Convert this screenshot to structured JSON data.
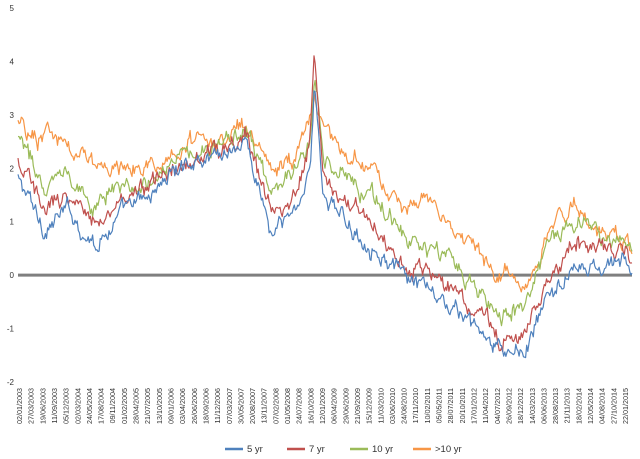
{
  "chart_data": {
    "type": "line",
    "title": "",
    "xlabel": "",
    "ylabel": "",
    "ylim": [
      -2,
      5
    ],
    "yticks": [
      -2,
      -1,
      0,
      1,
      2,
      3,
      4,
      5
    ],
    "ytick_labels": [
      "-2",
      "-1",
      "0",
      "1",
      "2",
      "3",
      "4",
      "5"
    ],
    "grid": false,
    "legend_position": "bottom",
    "zero_line_color": "#7f7f7f",
    "x_tick_labels": [
      "02/01/2003",
      "27/03/2003",
      "19/06/2003",
      "11/09/2003",
      "05/12/2003",
      "02/03/2004",
      "24/05/2004",
      "17/08/2004",
      "09/11/2004",
      "01/02/2005",
      "28/04/2005",
      "21/07/2005",
      "13/10/2005",
      "09/01/2006",
      "03/04/2006",
      "26/06/2006",
      "18/09/2006",
      "11/12/2006",
      "07/03/2007",
      "30/05/2007",
      "20/08/2007",
      "13/11/2007",
      "07/02/2008",
      "01/05/2008",
      "24/07/2008",
      "16/10/2008",
      "12/01/2009",
      "06/04/2009",
      "29/06/2009",
      "21/09/2009",
      "15/12/2009",
      "11/03/2010",
      "03/06/2010",
      "24/08/2010",
      "17/11/2010",
      "10/02/2011",
      "05/05/2011",
      "28/07/2011",
      "20/10/2011",
      "17/01/2012",
      "11/04/2012",
      "04/07/2012",
      "26/09/2012",
      "18/12/2012",
      "14/03/2013",
      "06/06/2013",
      "28/08/2013",
      "21/11/2013",
      "18/02/2014",
      "12/05/2014",
      "04/08/2014",
      "27/10/2014",
      "22/01/2015"
    ],
    "x": [
      "2003-01",
      "2003-07",
      "2004-01",
      "2004-07",
      "2005-01",
      "2005-07",
      "2006-01",
      "2006-07",
      "2007-01",
      "2007-07",
      "2008-01",
      "2008-07",
      "2008-10",
      "2008-11",
      "2009-01",
      "2009-07",
      "2010-01",
      "2010-07",
      "2011-01",
      "2011-07",
      "2012-01",
      "2012-07",
      "2013-01",
      "2013-07",
      "2014-01",
      "2014-07",
      "2015-01",
      "2015-02"
    ],
    "series": [
      {
        "name": "5 yr",
        "color": "#4f81bd",
        "values": [
          1.8,
          0.9,
          1.2,
          0.6,
          1.1,
          1.4,
          1.9,
          2.2,
          2.3,
          2.5,
          0.7,
          1.3,
          2.1,
          3.5,
          1.6,
          0.9,
          0.6,
          0.0,
          -0.3,
          -0.6,
          -1.0,
          -1.5,
          -1.4,
          -0.3,
          0.1,
          0.1,
          0.3,
          0.0
        ]
      },
      {
        "name": "7 yr",
        "color": "#c0504d",
        "values": [
          2.1,
          1.3,
          1.5,
          1.0,
          1.4,
          1.6,
          2.0,
          2.3,
          2.3,
          2.6,
          1.1,
          1.6,
          2.4,
          4.2,
          1.9,
          1.3,
          1.0,
          0.4,
          0.1,
          -0.2,
          -0.6,
          -1.2,
          -1.1,
          0.1,
          0.5,
          0.4,
          0.5,
          0.2
        ]
      },
      {
        "name": "10 yr",
        "color": "#9bbb59",
        "values": [
          2.5,
          1.8,
          1.9,
          1.4,
          1.7,
          1.8,
          2.1,
          2.4,
          2.4,
          2.7,
          1.5,
          2.0,
          2.7,
          3.7,
          2.3,
          1.7,
          1.4,
          0.8,
          0.5,
          0.2,
          -0.2,
          -0.7,
          -0.6,
          0.6,
          0.9,
          0.7,
          0.6,
          0.3
        ]
      },
      {
        "name": ">10 yr",
        "color": "#f79646",
        "values": [
          2.8,
          2.5,
          2.6,
          2.0,
          2.0,
          2.0,
          2.2,
          2.5,
          2.5,
          2.8,
          2.0,
          2.2,
          3.0,
          3.3,
          2.8,
          2.2,
          2.0,
          1.2,
          1.5,
          0.9,
          0.6,
          0.0,
          -0.1,
          1.0,
          1.3,
          0.8,
          0.7,
          0.4
        ]
      }
    ]
  }
}
